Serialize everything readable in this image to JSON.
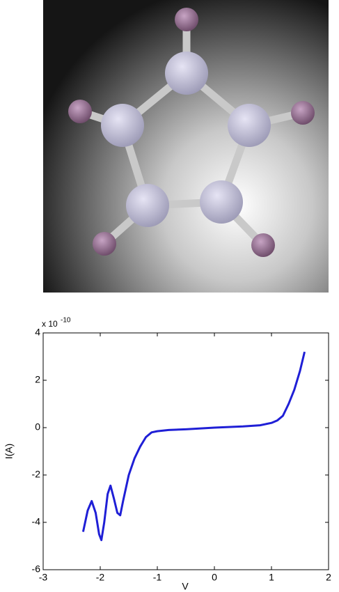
{
  "chart_data": {
    "type": "line",
    "x_label": "V",
    "y_label": "I(A)",
    "y_scale_label": "x 10",
    "y_scale_exponent": "-10",
    "xlim": [
      -3,
      2
    ],
    "xticks": [
      -3,
      -2,
      -1,
      0,
      1,
      2
    ],
    "ylim": [
      -6,
      4
    ],
    "yticks": [
      -6,
      -4,
      -2,
      0,
      2,
      4
    ],
    "grid": false,
    "series": [
      {
        "color": "#1f1fd6",
        "x": [
          -2.3,
          -2.22,
          -2.15,
          -2.08,
          -2.02,
          -1.98,
          -1.93,
          -1.87,
          -1.82,
          -1.76,
          -1.7,
          -1.65,
          -1.6,
          -1.5,
          -1.4,
          -1.3,
          -1.2,
          -1.1,
          -1.0,
          -0.8,
          -0.5,
          0,
          0.5,
          0.8,
          1.0,
          1.1,
          1.2,
          1.3,
          1.4,
          1.5,
          1.58
        ],
        "values": [
          -4.4,
          -3.5,
          -3.1,
          -3.6,
          -4.5,
          -4.75,
          -4.0,
          -2.8,
          -2.45,
          -3.0,
          -3.6,
          -3.7,
          -3.1,
          -2.0,
          -1.3,
          -0.8,
          -0.4,
          -0.2,
          -0.15,
          -0.1,
          -0.07,
          0,
          0.05,
          0.1,
          0.2,
          0.3,
          0.5,
          1.0,
          1.6,
          2.4,
          3.2
        ]
      }
    ]
  }
}
